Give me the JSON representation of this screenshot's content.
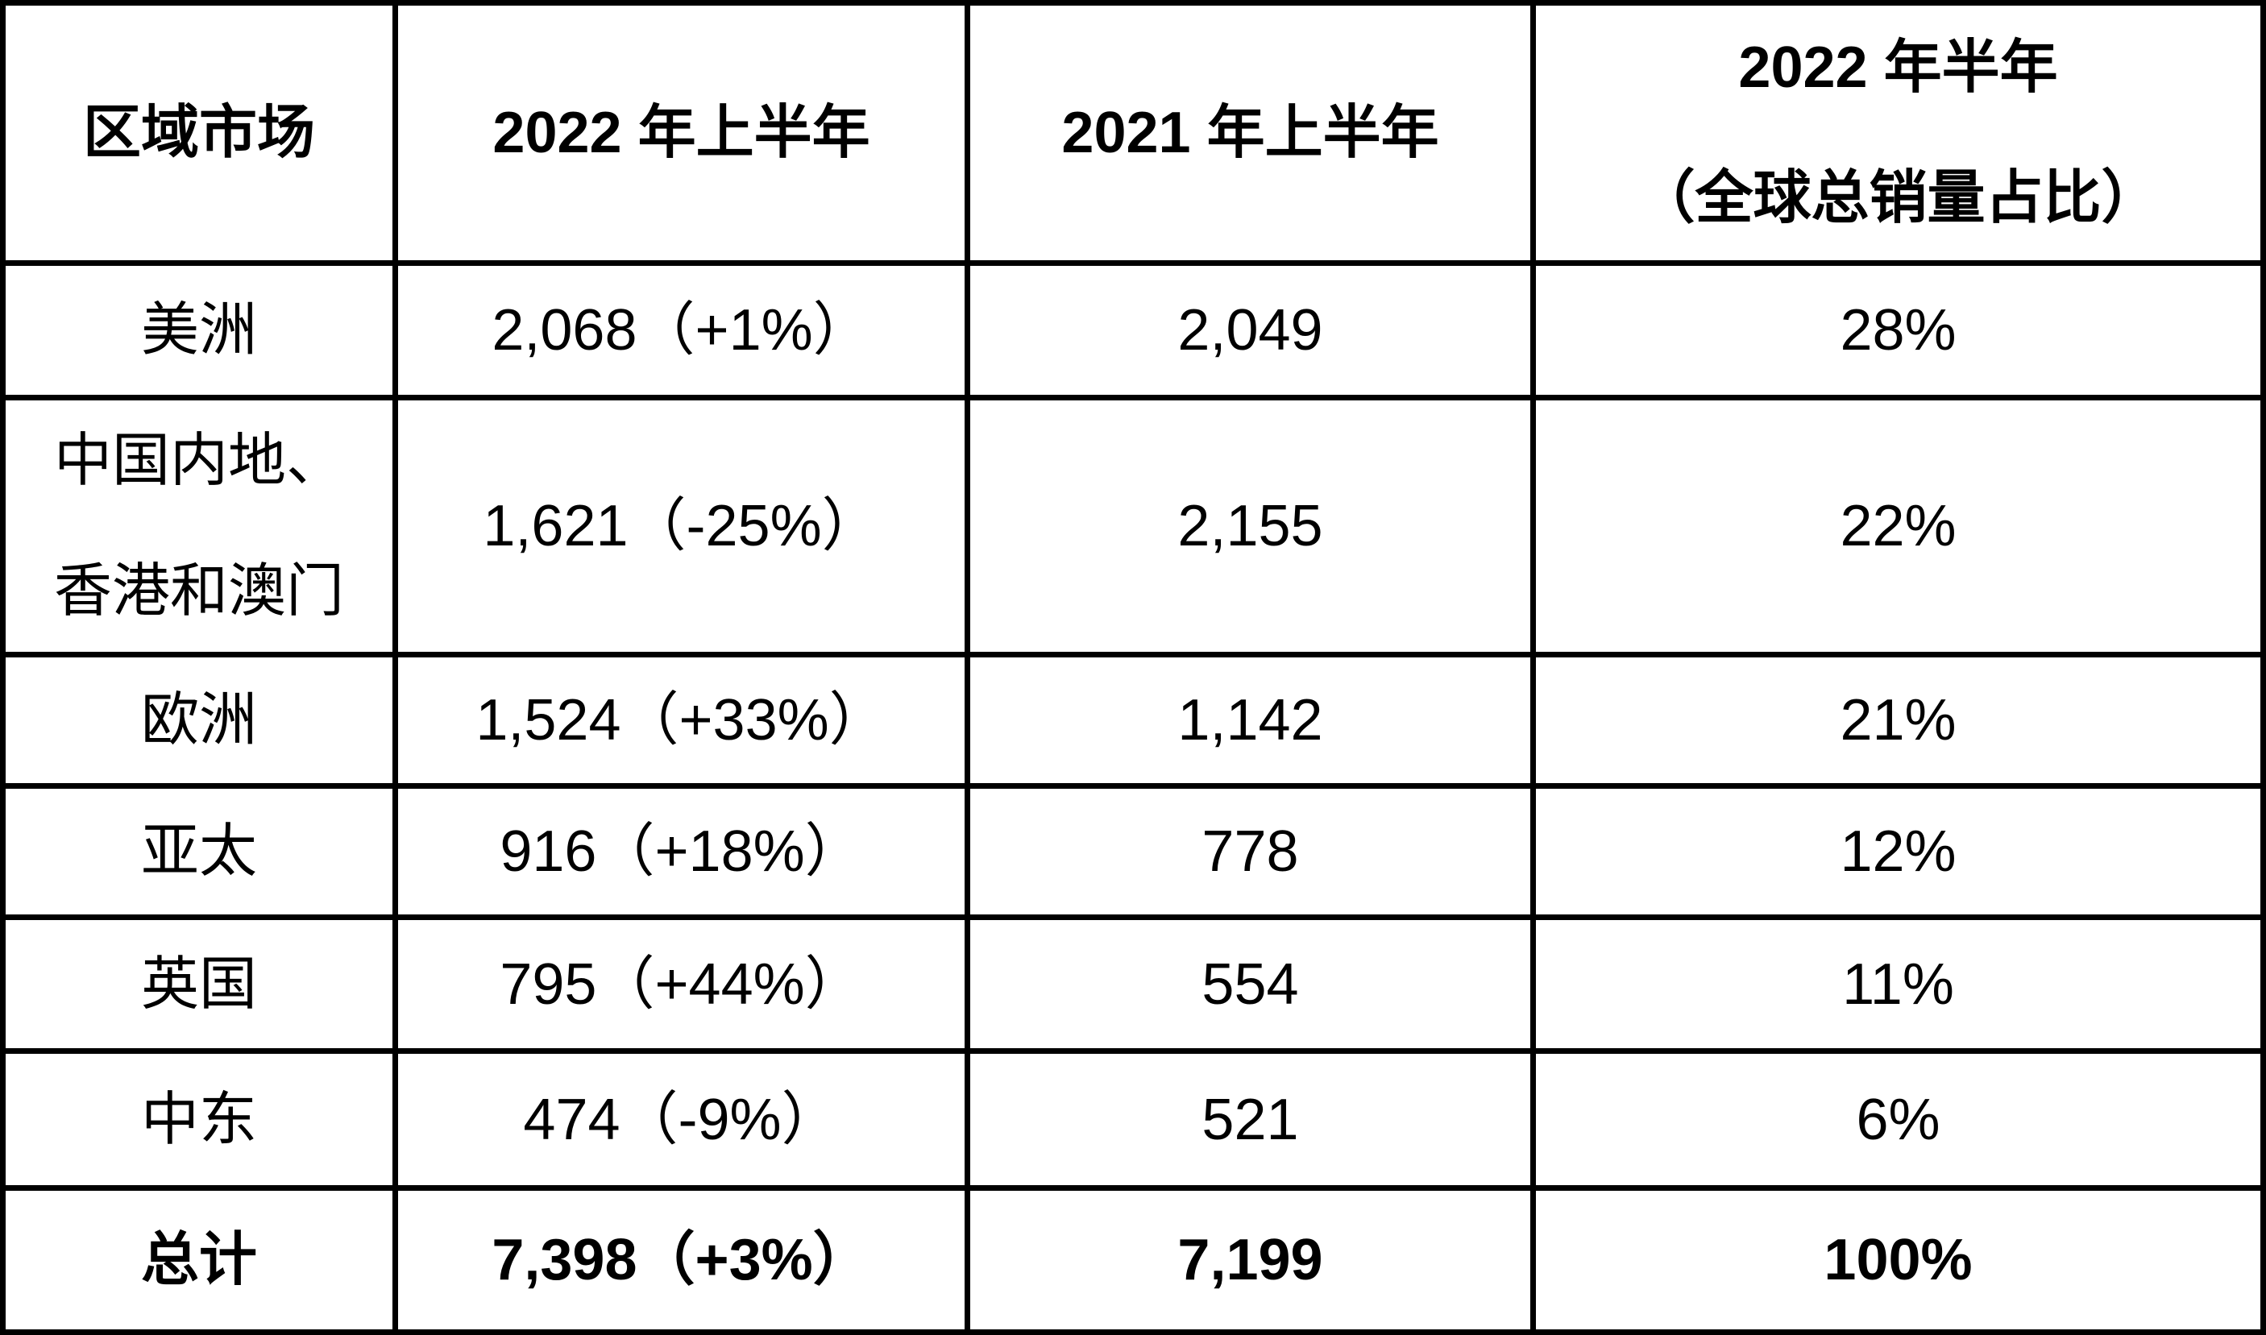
{
  "colors": {
    "background": "#ffffff",
    "text": "#000000",
    "border": "#000000"
  },
  "table": {
    "header": {
      "col1": "区域市场",
      "col2": "2022 年上半年",
      "col3": "2021 年上半年",
      "col4_line1": "2022 年半年",
      "col4_line2": "（全球总销量占比）"
    },
    "rows": [
      {
        "region": "美洲",
        "hy2022": "2,068（+1%）",
        "hy2021": "2,049",
        "share": "28%"
      },
      {
        "region_line1": "中国内地、",
        "region_line2": "香港和澳门",
        "hy2022": "1,621（-25%）",
        "hy2021": "2,155",
        "share": "22%"
      },
      {
        "region": "欧洲",
        "hy2022": "1,524（+33%）",
        "hy2021": "1,142",
        "share": "21%"
      },
      {
        "region": "亚太",
        "hy2022": "916（+18%）",
        "hy2021": "778",
        "share": "12%"
      },
      {
        "region": "英国",
        "hy2022": "795（+44%）",
        "hy2021": "554",
        "share": "11%"
      },
      {
        "region": "中东",
        "hy2022": "474（-9%）",
        "hy2021": "521",
        "share": "6%"
      },
      {
        "region": "总计",
        "hy2022": "7,398（+3%）",
        "hy2021": "7,199",
        "share": "100%"
      }
    ]
  },
  "chart_data": {
    "type": "table",
    "columns": [
      "区域市场",
      "2022 年上半年",
      "2021 年上半年",
      "2022 年半年（全球总销量占比）"
    ],
    "rows": [
      [
        "美洲",
        "2,068（+1%）",
        "2,049",
        "28%"
      ],
      [
        "中国内地、香港和澳门",
        "1,621（-25%）",
        "2,155",
        "22%"
      ],
      [
        "欧洲",
        "1,524（+33%）",
        "1,142",
        "21%"
      ],
      [
        "亚太",
        "916（+18%）",
        "778",
        "12%"
      ],
      [
        "英国",
        "795（+44%）",
        "554",
        "11%"
      ],
      [
        "中东",
        "474（-9%）",
        "521",
        "6%"
      ],
      [
        "总计",
        "7,398（+3%）",
        "7,199",
        "100%"
      ]
    ],
    "values_2022_h1": [
      2068,
      1621,
      1524,
      916,
      795,
      474,
      7398
    ],
    "values_2021_h1": [
      2049,
      2155,
      1142,
      778,
      554,
      521,
      7199
    ],
    "yoy_change_pct": [
      1,
      -25,
      33,
      18,
      44,
      -9,
      3
    ],
    "share_of_global_pct": [
      28,
      22,
      21,
      12,
      11,
      6,
      100
    ]
  }
}
